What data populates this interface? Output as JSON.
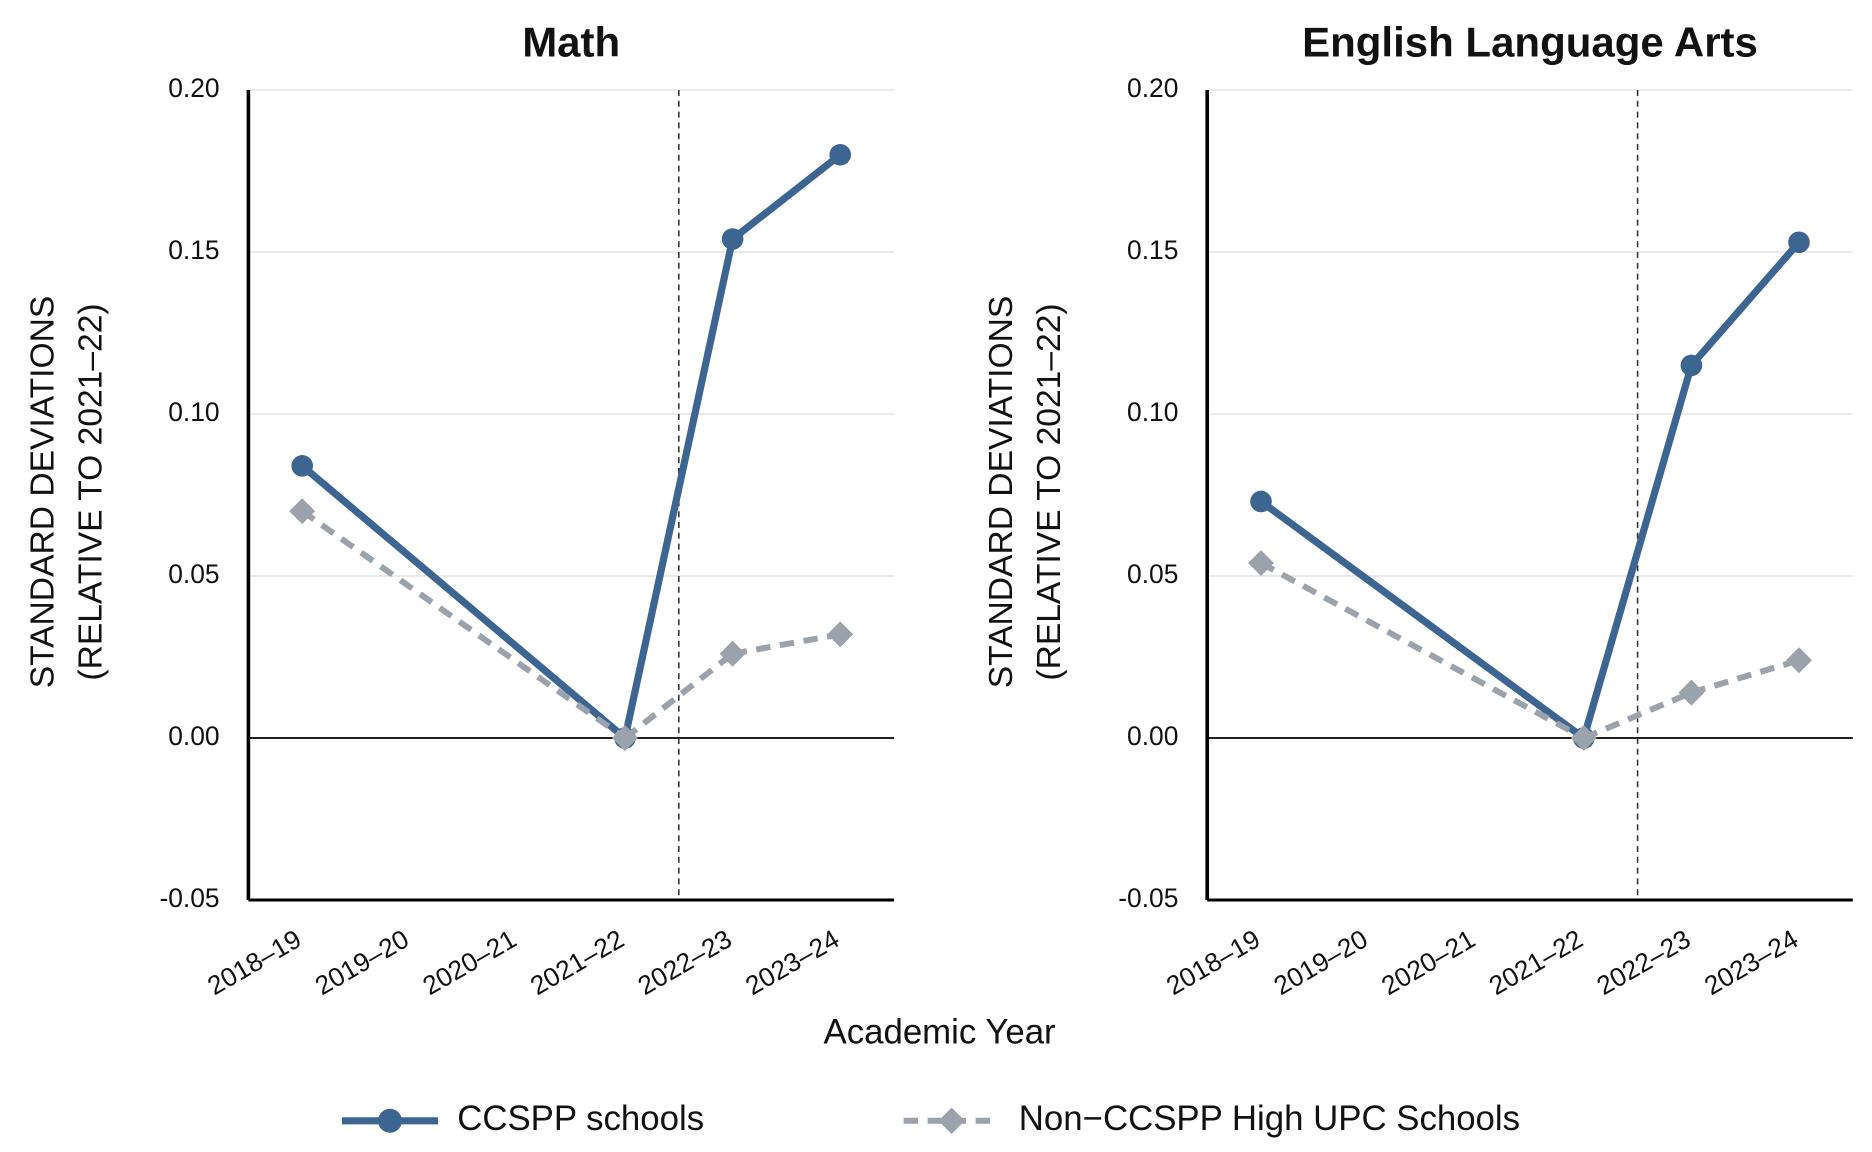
{
  "chart_data": [
    {
      "type": "line",
      "title": "Math",
      "categories": [
        "2018–19",
        "2019–20",
        "2020–21",
        "2021–22",
        "2022–23",
        "2023–24"
      ],
      "series": [
        {
          "name": "CCSPP schools",
          "color": "#3d6591",
          "line_style": "solid",
          "marker": "circle",
          "values": [
            0.084,
            null,
            null,
            0,
            0.154,
            0.18
          ]
        },
        {
          "name": "Non−CCSPP High UPC Schools",
          "color": "#9aa2ab",
          "line_style": "dashed",
          "marker": "diamond",
          "values": [
            0.07,
            null,
            null,
            0,
            0.026,
            0.032
          ]
        }
      ],
      "ylim": [
        -0.05,
        0.2
      ],
      "yticks": [
        {
          "value": 0.2,
          "label": "0.20"
        },
        0.15,
        {
          "value": 0.1,
          "label": "0.10"
        },
        0.05,
        {
          "value": 0,
          "label": "0.00"
        },
        -0.05
      ],
      "grid": true
    },
    {
      "type": "line",
      "title": "English Language Arts",
      "categories": [
        "2018–19",
        "2019–20",
        "2020–21",
        "2021–22",
        "2022–23",
        "2023–24"
      ],
      "series": [
        {
          "name": "CCSPP schools",
          "color": "#3d6591",
          "line_style": "solid",
          "marker": "circle",
          "values": [
            0.073,
            null,
            null,
            0,
            0.115,
            0.153
          ]
        },
        {
          "name": "Non−CCSPP High UPC Schools",
          "color": "#9aa2ab",
          "line_style": "dashed",
          "marker": "diamond",
          "values": [
            0.054,
            null,
            null,
            0,
            0.014,
            0.024
          ]
        }
      ],
      "ylim": [
        -0.05,
        0.2
      ],
      "yticks": [
        {
          "value": 0.2,
          "label": "0.20"
        },
        0.15,
        {
          "value": 0.1,
          "label": "0.10"
        },
        0.05,
        {
          "value": 0,
          "label": "0.00"
        },
        -0.05
      ],
      "grid": true
    }
  ],
  "x_label": "Academic Year",
  "y_label": [
    "STANDARD DEVIATIONS",
    "(RELATIVE TO 2021–22)"
  ]
}
